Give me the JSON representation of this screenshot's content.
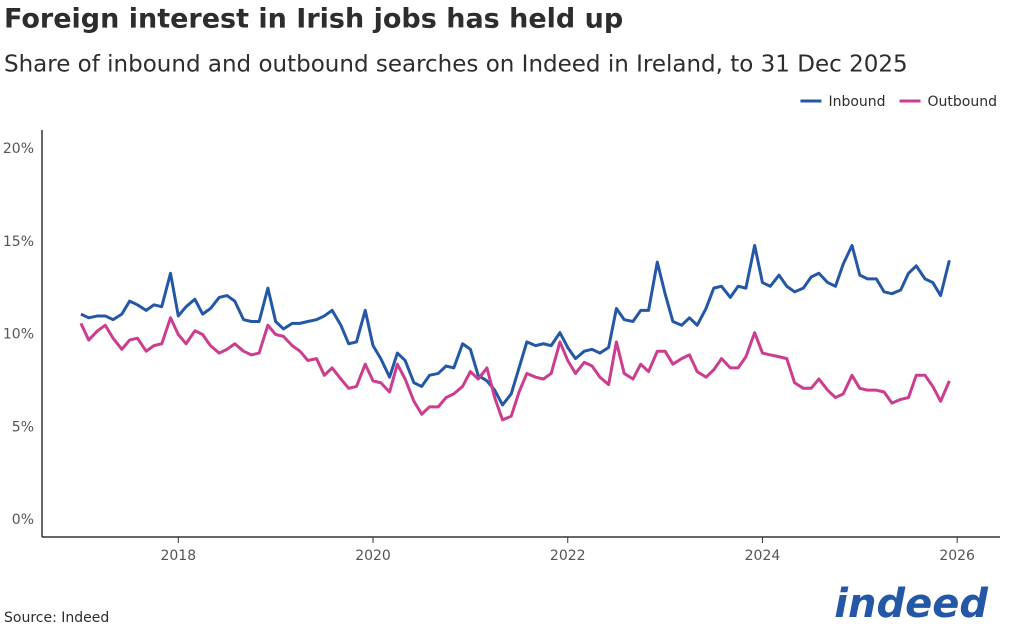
{
  "chart_data": {
    "type": "line",
    "title": "Foreign interest in Irish jobs has held up",
    "subtitle": "Share of inbound and outbound searches on Indeed in Ireland, to 31 Dec 2025",
    "source": "Source: Indeed",
    "logo": "indeed",
    "x": [
      2017,
      2017.08,
      2017.17,
      2017.25,
      2017.33,
      2017.42,
      2017.5,
      2017.58,
      2017.67,
      2017.75,
      2017.83,
      2017.92,
      2018,
      2018.08,
      2018.17,
      2018.25,
      2018.33,
      2018.42,
      2018.5,
      2018.58,
      2018.67,
      2018.75,
      2018.83,
      2018.92,
      2019,
      2019.08,
      2019.17,
      2019.25,
      2019.33,
      2019.42,
      2019.5,
      2019.58,
      2019.67,
      2019.75,
      2019.83,
      2019.92,
      2020,
      2020.08,
      2020.17,
      2020.25,
      2020.33,
      2020.42,
      2020.5,
      2020.58,
      2020.67,
      2020.75,
      2020.83,
      2020.92,
      2021,
      2021.08,
      2021.17,
      2021.25,
      2021.33,
      2021.42,
      2021.5,
      2021.58,
      2021.67,
      2021.75,
      2021.83,
      2021.92,
      2022,
      2022.08,
      2022.17,
      2022.25,
      2022.33,
      2022.42,
      2022.5,
      2022.58,
      2022.67,
      2022.75,
      2022.83,
      2022.92,
      2023,
      2023.08,
      2023.17,
      2023.25,
      2023.33,
      2023.42,
      2023.5,
      2023.58,
      2023.67,
      2023.75,
      2023.83,
      2023.92,
      2024,
      2024.08,
      2024.17,
      2024.25,
      2024.33,
      2024.42,
      2024.5,
      2024.58,
      2024.67,
      2024.75,
      2024.83,
      2024.92,
      2025,
      2025.08,
      2025.17,
      2025.25,
      2025.33,
      2025.42,
      2025.5,
      2025.58,
      2025.67,
      2025.75,
      2025.83,
      2025.92
    ],
    "series": [
      {
        "name": "Inbound",
        "color": "#2557a7",
        "values": [
          11.1,
          10.9,
          11.0,
          11.0,
          10.8,
          11.1,
          11.8,
          11.6,
          11.3,
          11.6,
          11.5,
          13.3,
          11.0,
          11.5,
          11.9,
          11.1,
          11.4,
          12.0,
          12.1,
          11.8,
          10.8,
          10.7,
          10.7,
          12.5,
          10.7,
          10.3,
          10.6,
          10.6,
          10.7,
          10.8,
          11.0,
          11.3,
          10.5,
          9.5,
          9.6,
          11.3,
          9.4,
          8.7,
          7.7,
          9.0,
          8.6,
          7.4,
          7.2,
          7.8,
          7.9,
          8.3,
          8.2,
          9.5,
          9.2,
          7.8,
          7.5,
          7.0,
          6.2,
          6.8,
          8.2,
          9.6,
          9.4,
          9.5,
          9.4,
          10.1,
          9.3,
          8.7,
          9.1,
          9.2,
          9.0,
          9.3,
          11.4,
          10.8,
          10.7,
          11.3,
          11.3,
          13.9,
          12.2,
          10.7,
          10.5,
          10.9,
          10.5,
          11.4,
          12.5,
          12.6,
          12.0,
          12.6,
          12.5,
          14.8,
          12.8,
          12.6,
          13.2,
          12.6,
          12.3,
          12.5,
          13.1,
          13.3,
          12.8,
          12.6,
          13.8,
          14.8,
          13.2,
          13.0,
          13.0,
          12.3,
          12.2,
          12.4,
          13.3,
          13.7,
          13.0,
          12.8,
          12.1,
          14.0
        ]
      },
      {
        "name": "Outbound",
        "color": "#cc3d8f",
        "values": [
          10.6,
          9.7,
          10.2,
          10.5,
          9.8,
          9.2,
          9.7,
          9.8,
          9.1,
          9.4,
          9.5,
          10.9,
          10.0,
          9.5,
          10.2,
          10.0,
          9.4,
          9.0,
          9.2,
          9.5,
          9.1,
          8.9,
          9.0,
          10.5,
          10.0,
          9.9,
          9.4,
          9.1,
          8.6,
          8.7,
          7.8,
          8.2,
          7.6,
          7.1,
          7.2,
          8.4,
          7.5,
          7.4,
          6.9,
          8.4,
          7.6,
          6.4,
          5.7,
          6.1,
          6.1,
          6.6,
          6.8,
          7.2,
          8.0,
          7.6,
          8.2,
          6.6,
          5.4,
          5.6,
          6.9,
          7.9,
          7.7,
          7.6,
          7.9,
          9.6,
          8.6,
          7.9,
          8.5,
          8.3,
          7.7,
          7.3,
          9.6,
          7.9,
          7.6,
          8.4,
          8.0,
          9.1,
          9.1,
          8.4,
          8.7,
          8.9,
          8.0,
          7.7,
          8.1,
          8.7,
          8.2,
          8.2,
          8.8,
          10.1,
          9.0,
          8.9,
          8.8,
          8.7,
          7.4,
          7.1,
          7.1,
          7.6,
          7.0,
          6.6,
          6.8,
          7.8,
          7.1,
          7.0,
          7.0,
          6.9,
          6.3,
          6.5,
          6.6,
          7.8,
          7.8,
          7.2,
          6.4,
          7.5
        ]
      }
    ],
    "xlim": [
      2016.6,
      2026.44
    ],
    "xticks": [
      2018,
      2020,
      2022,
      2024,
      2026
    ],
    "ylim": [
      0,
      20
    ],
    "yticks": [
      {
        "value": 0,
        "label": "0%"
      },
      {
        "value": 5,
        "label": "5%"
      },
      {
        "value": 10,
        "label": "10%"
      },
      {
        "value": 15,
        "label": "15%"
      },
      {
        "value": 20,
        "label": "20%"
      }
    ],
    "grid": false,
    "legend": "top-right"
  }
}
